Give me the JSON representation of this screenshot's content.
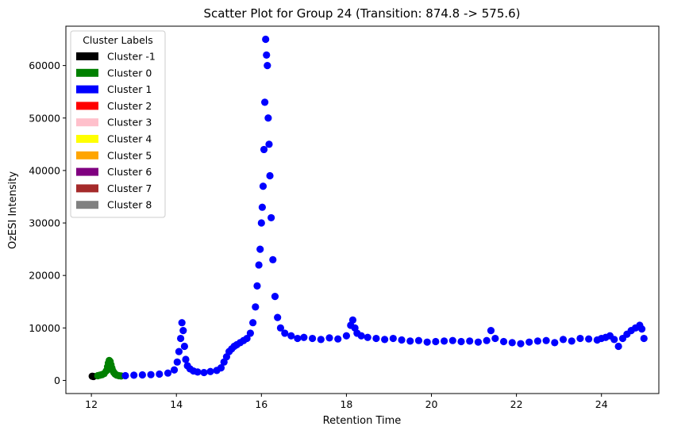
{
  "chart_data": {
    "type": "scatter",
    "title": "Scatter Plot for Group 24 (Transition: 874.8 -> 575.6)",
    "xlabel": "Retention Time",
    "ylabel": "OzESI Intensity",
    "xlim": [
      11.4,
      25.35
    ],
    "ylim": [
      -2500,
      67500
    ],
    "xticks": [
      12,
      14,
      16,
      18,
      20,
      22,
      24
    ],
    "yticks": [
      0,
      10000,
      20000,
      30000,
      40000,
      50000,
      60000
    ],
    "grid": false,
    "legend": {
      "title": "Cluster Labels",
      "placement": "top-left",
      "entries": [
        {
          "label": "Cluster -1",
          "color": "#000000"
        },
        {
          "label": "Cluster 0",
          "color": "#008000"
        },
        {
          "label": "Cluster 1",
          "color": "#0000ff"
        },
        {
          "label": "Cluster 2",
          "color": "#ff0000"
        },
        {
          "label": "Cluster 3",
          "color": "#ffc0cb"
        },
        {
          "label": "Cluster 4",
          "color": "#ffff00"
        },
        {
          "label": "Cluster 5",
          "color": "#ffa500"
        },
        {
          "label": "Cluster 6",
          "color": "#800080"
        },
        {
          "label": "Cluster 7",
          "color": "#a52a2a"
        },
        {
          "label": "Cluster 8",
          "color": "#808080"
        }
      ]
    },
    "series": [
      {
        "name": "Cluster -1",
        "color": "#000000",
        "x": [
          12.02,
          12.05
        ],
        "y": [
          800,
          750
        ]
      },
      {
        "name": "Cluster 0",
        "color": "#008000",
        "x": [
          12.15,
          12.2,
          12.25,
          12.3,
          12.35,
          12.38,
          12.4,
          12.42,
          12.44,
          12.46,
          12.48,
          12.5,
          12.53,
          12.56,
          12.6,
          12.65,
          12.7
        ],
        "y": [
          900,
          1000,
          1100,
          1300,
          1800,
          2600,
          3300,
          3800,
          3600,
          3000,
          2400,
          1900,
          1500,
          1200,
          1000,
          900,
          850
        ]
      },
      {
        "name": "Cluster 1",
        "color": "#0000ff",
        "x": [
          12.8,
          13.0,
          13.2,
          13.4,
          13.6,
          13.8,
          13.95,
          14.02,
          14.06,
          14.1,
          14.13,
          14.16,
          14.19,
          14.22,
          14.26,
          14.32,
          14.4,
          14.5,
          14.65,
          14.8,
          14.95,
          15.05,
          15.12,
          15.18,
          15.24,
          15.3,
          15.36,
          15.42,
          15.5,
          15.58,
          15.66,
          15.74,
          15.8,
          15.86,
          15.9,
          15.94,
          15.97,
          16.0,
          16.02,
          16.04,
          16.06,
          16.08,
          16.1,
          16.12,
          16.14,
          16.16,
          16.18,
          16.2,
          16.23,
          16.27,
          16.32,
          16.38,
          16.45,
          16.55,
          16.7,
          16.85,
          17.0,
          17.2,
          17.4,
          17.6,
          17.8,
          18.0,
          18.1,
          18.15,
          18.2,
          18.25,
          18.35,
          18.5,
          18.7,
          18.9,
          19.1,
          19.3,
          19.5,
          19.7,
          19.9,
          20.1,
          20.3,
          20.5,
          20.7,
          20.9,
          21.1,
          21.3,
          21.4,
          21.5,
          21.7,
          21.9,
          22.1,
          22.3,
          22.5,
          22.7,
          22.9,
          23.1,
          23.3,
          23.5,
          23.7,
          23.9,
          24.0,
          24.1,
          24.2,
          24.3,
          24.4,
          24.5,
          24.6,
          24.7,
          24.8,
          24.9,
          24.95,
          25.0
        ],
        "y": [
          900,
          1000,
          1050,
          1100,
          1200,
          1400,
          2000,
          3500,
          5500,
          8000,
          11000,
          9500,
          6500,
          4000,
          2800,
          2200,
          1800,
          1600,
          1500,
          1700,
          1900,
          2400,
          3500,
          4500,
          5500,
          6000,
          6500,
          6800,
          7200,
          7600,
          8000,
          9000,
          11000,
          14000,
          18000,
          22000,
          25000,
          30000,
          33000,
          37000,
          44000,
          53000,
          65000,
          62000,
          60000,
          50000,
          45000,
          39000,
          31000,
          23000,
          16000,
          12000,
          10000,
          9000,
          8500,
          8000,
          8200,
          8000,
          7800,
          8100,
          7900,
          8500,
          10500,
          11500,
          10000,
          9000,
          8500,
          8200,
          8000,
          7800,
          8000,
          7700,
          7500,
          7600,
          7300,
          7400,
          7500,
          7600,
          7400,
          7500,
          7300,
          7600,
          9500,
          8000,
          7400,
          7200,
          7000,
          7300,
          7500,
          7600,
          7200,
          7800,
          7500,
          8000,
          7900,
          7700,
          8000,
          8200,
          8500,
          7800,
          6500,
          8000,
          8800,
          9500,
          10000,
          10500,
          9800,
          8000
        ]
      }
    ]
  }
}
